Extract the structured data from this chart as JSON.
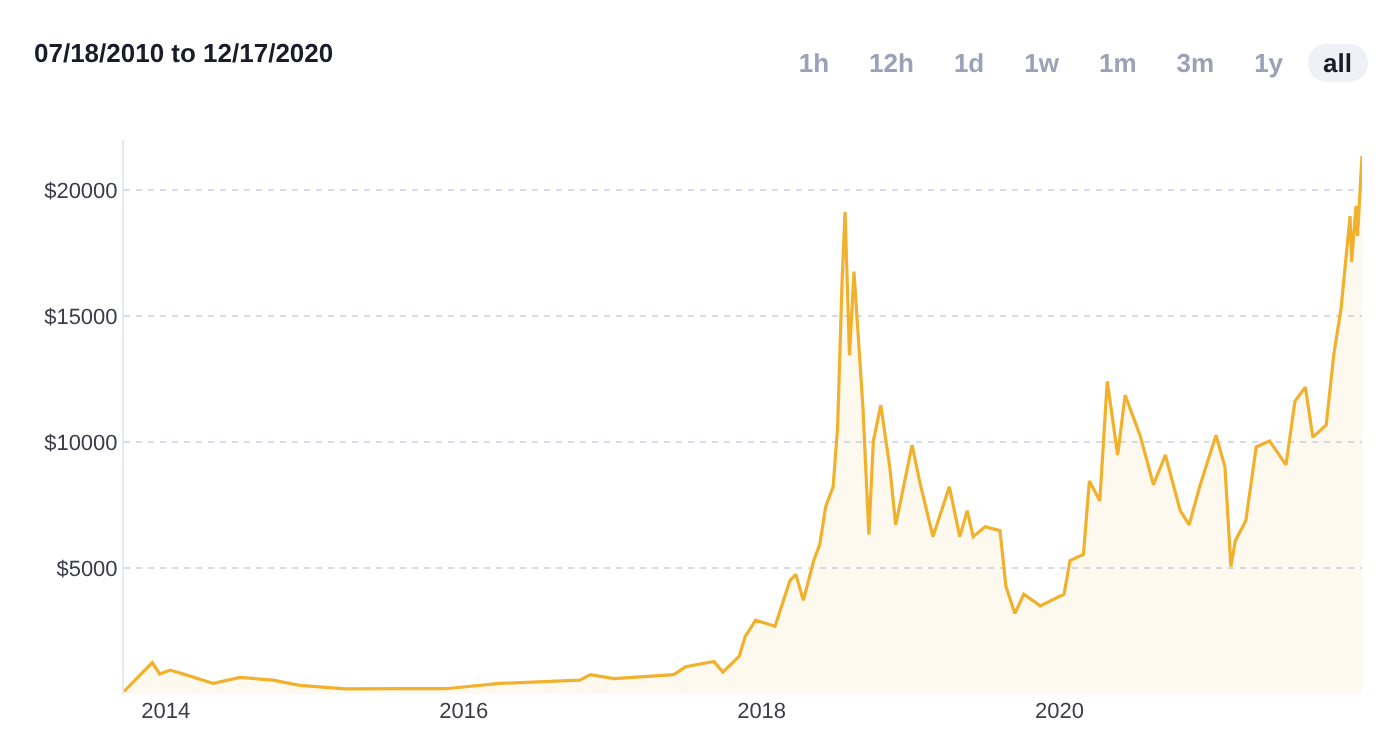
{
  "chart_data": {
    "type": "area",
    "title": "07/18/2010 to 12/17/2020",
    "annotations": [
      "1h",
      "12h",
      "1d",
      "1w",
      "1m",
      "3m",
      "1y",
      "all"
    ],
    "x": [
      2013.72,
      2013.91,
      2013.96,
      2014.03,
      2014.12,
      2014.32,
      2014.5,
      2014.72,
      2014.9,
      2015.21,
      2015.57,
      2015.88,
      2016.24,
      2016.78,
      2016.85,
      2017.01,
      2017.41,
      2017.49,
      2017.68,
      2017.74,
      2017.85,
      2017.89,
      2017.96,
      2018.09,
      2018.19,
      2018.23,
      2018.28,
      2018.35,
      2018.39,
      2018.43,
      2018.48,
      2018.51,
      2018.54,
      2018.56,
      2018.59,
      2018.62,
      2018.66,
      2018.68,
      2018.72,
      2018.75,
      2018.8,
      2018.86,
      2018.9,
      2019.01,
      2019.06,
      2019.15,
      2019.26,
      2019.33,
      2019.38,
      2019.42,
      2019.5,
      2019.6,
      2019.64,
      2019.7,
      2019.76,
      2019.87,
      2020.03,
      2020.07,
      2020.16,
      2020.2,
      2020.27,
      2020.32,
      2020.39,
      2020.44,
      2020.54,
      2020.63,
      2020.71,
      2020.81,
      2020.87,
      2020.94,
      2021.05,
      2021.11,
      2021.15,
      2021.18,
      2021.25,
      2021.32,
      2021.41,
      2021.52,
      2021.58,
      2021.65,
      2021.7,
      2021.79,
      2021.84,
      2021.89,
      2021.95,
      2021.96,
      2021.99,
      2022.0,
      2022.03
    ],
    "series": [
      {
        "color": "#f2b12c",
        "values": [
          100,
          1250,
          790,
          950,
          790,
          420,
          660,
          550,
          340,
          200,
          210,
          210,
          420,
          550,
          770,
          610,
          770,
          1080,
          1290,
          870,
          1500,
          2290,
          2930,
          2690,
          4500,
          4750,
          3720,
          5300,
          5930,
          7440,
          8230,
          10600,
          16370,
          19140,
          13450,
          16770,
          13200,
          11390,
          6330,
          10050,
          11470,
          9020,
          6720,
          9890,
          8460,
          6250,
          8230,
          6250,
          7280,
          6250,
          6640,
          6490,
          4270,
          3200,
          3960,
          3500,
          3960,
          5300,
          5540,
          8460,
          7670,
          12420,
          9490,
          11870,
          10280,
          8310,
          9490,
          7280,
          6720,
          8230,
          10280,
          9020,
          5060,
          6090,
          6880,
          9810,
          10050,
          9100,
          11630,
          12180,
          10200,
          10680,
          13450,
          15350,
          18980,
          17160,
          19380,
          18190,
          21360
        ]
      }
    ],
    "xlim": [
      2013.72,
      2022.03
    ],
    "xticks": [
      2014,
      2016,
      2018,
      2020
    ],
    "ylim": [
      0,
      22000
    ],
    "yticks": [
      {
        "value": 5000,
        "label": "$5000"
      },
      {
        "value": 10000,
        "label": "$10000"
      },
      {
        "value": 15000,
        "label": "$15000"
      },
      {
        "value": 20000,
        "label": "$20000"
      }
    ],
    "grid": "y",
    "legend": false
  }
}
